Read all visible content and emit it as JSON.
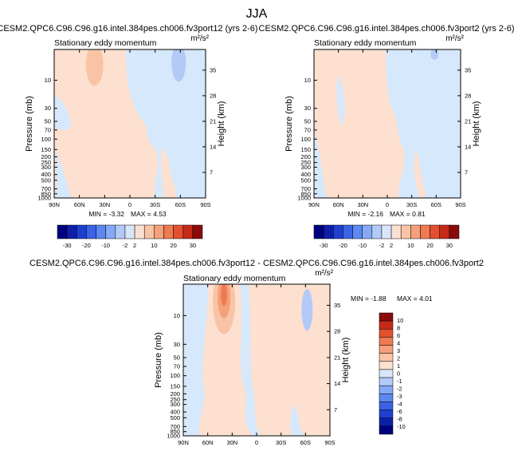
{
  "page_title": "JJA",
  "chart_data": [
    {
      "type": "heatmap",
      "title": "CESM2.QPC6.C96.C96.g16.intel.384pes.ch006.fv3port12 (yrs 2-6)",
      "subtitle": "Stationary eddy momentum",
      "units": "m²/s²",
      "ylabel": "Pressure (mb)",
      "ylabel_right": "Height (km)",
      "xticks": [
        "90N",
        "60N",
        "30N",
        "0",
        "30S",
        "60S",
        "90S"
      ],
      "yticks": [
        "10",
        "30",
        "50",
        "70",
        "100",
        "150",
        "200",
        "250",
        "300",
        "400",
        "500",
        "700",
        "850",
        "1000"
      ],
      "yticks_right": [
        "35",
        "28",
        "21",
        "14",
        "7"
      ],
      "min_label": "MIN = -3.32",
      "max_label": "MAX = 4.53",
      "colorbar_ticks": [
        "-30",
        "-20",
        "-10",
        "-2",
        "2",
        "10",
        "20",
        "30"
      ],
      "features": [
        {
          "lat": 40,
          "p": 7,
          "value": 4.5
        },
        {
          "lat": -58,
          "p": 7,
          "value": -3.3
        },
        {
          "lat": 60,
          "p": 60,
          "value": -1.0
        }
      ]
    },
    {
      "type": "heatmap",
      "title": "CESM2.QPC6.C96.C96.g16.intel.384pes.ch006.fv3port2 (yrs 2-6)",
      "subtitle": "Stationary eddy momentum",
      "units": "m²/s²",
      "ylabel": "Pressure (mb)",
      "ylabel_right": "Height (km)",
      "xticks": [
        "90N",
        "60N",
        "30N",
        "0",
        "30S",
        "60S",
        "90S"
      ],
      "yticks": [
        "10",
        "30",
        "50",
        "70",
        "100",
        "150",
        "200",
        "250",
        "300",
        "400",
        "500",
        "700",
        "850",
        "1000"
      ],
      "yticks_right": [
        "35",
        "28",
        "21",
        "14",
        "7"
      ],
      "min_label": "MIN = -2.16",
      "max_label": "MAX =  0.81",
      "colorbar_ticks": [
        "-30",
        "-20",
        "-10",
        "-2",
        "2",
        "10",
        "20",
        "30"
      ],
      "features": [
        {
          "lat": -58,
          "p": 5,
          "value": -2.2
        }
      ]
    },
    {
      "type": "heatmap",
      "title": "CESM2.QPC6.C96.C96.g16.intel.384pes.ch006.fv3port12 - CESM2.QPC6.C96.C96.g16.intel.384pes.ch006.fv3port2",
      "subtitle": "Stationary eddy momentum",
      "units": "m²/s²",
      "ylabel": "Pressure (mb)",
      "ylabel_right": "Height (km)",
      "xticks": [
        "90N",
        "60N",
        "30N",
        "0",
        "30S",
        "60S",
        "90S"
      ],
      "yticks": [
        "10",
        "30",
        "50",
        "70",
        "100",
        "150",
        "200",
        "250",
        "300",
        "400",
        "500",
        "700",
        "850",
        "1000"
      ],
      "yticks_right": [
        "35",
        "28",
        "21",
        "14",
        "7"
      ],
      "min_label": "MIN = -1.88",
      "max_label": "MAX =  4.01",
      "colorbar_ticks": [
        "10",
        "8",
        "6",
        "4",
        "3",
        "2",
        "1",
        "0",
        "-1",
        "-2",
        "-3",
        "-4",
        "-6",
        "-8",
        "-10"
      ],
      "features": [
        {
          "lat": 40,
          "p": 6,
          "value": 4.0
        },
        {
          "lat": -60,
          "p": 8,
          "value": -1.9
        }
      ]
    }
  ],
  "colors": {
    "positive_light": "#fde0cf",
    "negative_light": "#d6e8fb",
    "div_scale": [
      "#00007f",
      "#0b1fa8",
      "#1f3fcf",
      "#3b63e6",
      "#5c88f0",
      "#86a9f5",
      "#b3caf8",
      "#d8e6fb",
      "#fbe1d2",
      "#f9c4a5",
      "#f5a07b",
      "#ee7a52",
      "#e2502d",
      "#c6291a",
      "#8b0a0a"
    ]
  }
}
